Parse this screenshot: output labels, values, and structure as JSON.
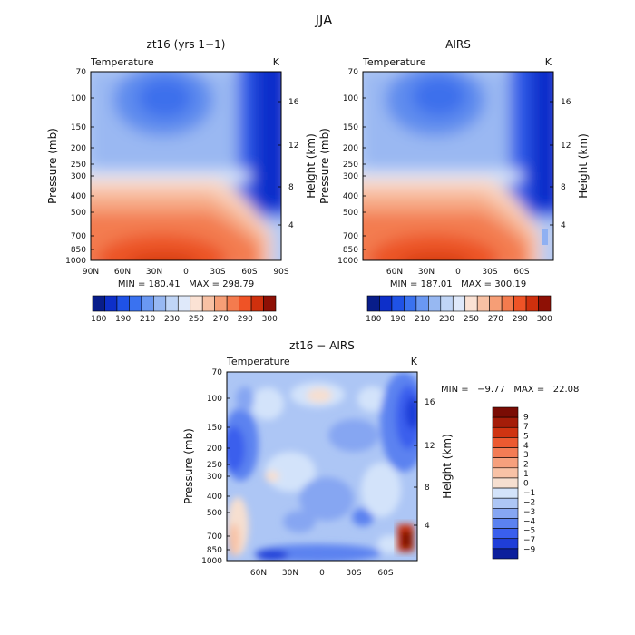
{
  "figure_title": "JJA",
  "chart_data": [
    {
      "type": "heatmap",
      "title": "zt16 (yrs 1−1)",
      "variable": "Temperature",
      "units": "K",
      "ylabel": "Pressure (mb)",
      "y2label": "Height (km)",
      "x_ticks": [
        "90N",
        "60N",
        "30N",
        "0",
        "30S",
        "60S",
        "90S"
      ],
      "y_ticks": [
        "70",
        "100",
        "150",
        "200",
        "250",
        "300",
        "400",
        "500",
        "700",
        "850",
        "1000"
      ],
      "y2_ticks": [
        "4",
        "8",
        "12",
        "16"
      ],
      "min": 180.41,
      "max": 298.79,
      "stats_text": "MIN = 180.41   MAX = 298.79",
      "levels": [
        170,
        180,
        190,
        200,
        210,
        220,
        230,
        240,
        250,
        260,
        270,
        280,
        290,
        300
      ],
      "colorbar_labels": [
        "180",
        "190",
        "210",
        "230",
        "250",
        "270",
        "290",
        "300"
      ]
    },
    {
      "type": "heatmap",
      "title": "AIRS",
      "variable": "Temperature",
      "units": "K",
      "ylabel": "Pressure (mb)",
      "y2label": "Height (km)",
      "x_ticks": [
        "60N",
        "30N",
        "0",
        "30S",
        "60S"
      ],
      "y_ticks": [
        "70",
        "100",
        "150",
        "200",
        "250",
        "300",
        "400",
        "500",
        "700",
        "850",
        "1000"
      ],
      "y2_ticks": [
        "4",
        "8",
        "12",
        "16"
      ],
      "min": 187.01,
      "max": 300.19,
      "stats_text": "MIN = 187.01   MAX = 300.19",
      "levels": [
        170,
        180,
        190,
        200,
        210,
        220,
        230,
        240,
        250,
        260,
        270,
        280,
        290,
        300
      ],
      "colorbar_labels": [
        "180",
        "190",
        "210",
        "230",
        "250",
        "270",
        "290",
        "300"
      ]
    },
    {
      "type": "heatmap",
      "title": "zt16 − AIRS",
      "variable": "Temperature",
      "units": "K",
      "ylabel": "Pressure (mb)",
      "y2label": "Height (km)",
      "x_ticks": [
        "60N",
        "30N",
        "0",
        "30S",
        "60S"
      ],
      "y_ticks": [
        "70",
        "100",
        "150",
        "200",
        "250",
        "300",
        "400",
        "500",
        "700",
        "850",
        "1000"
      ],
      "y2_ticks": [
        "4",
        "8",
        "12",
        "16"
      ],
      "min": -9.77,
      "max": 22.08,
      "stats_text": "MIN =   −9.77   MAX =   22.08",
      "levels": [
        -9,
        -7,
        -5,
        -4,
        -3,
        -2,
        -1,
        0,
        1,
        2,
        3,
        4,
        5,
        7,
        9
      ],
      "colorbar_labels": [
        "9",
        "7",
        "5",
        "4",
        "3",
        "2",
        "1",
        "0",
        "−1",
        "−2",
        "−3",
        "−4",
        "−5",
        "−7",
        "−9"
      ]
    }
  ],
  "colors": {
    "temp_scale": [
      "#081d8a",
      "#0d2fc9",
      "#1f52e6",
      "#3a72f0",
      "#6a98f2",
      "#97b8f2",
      "#c0d5f6",
      "#dfe9fa",
      "#fbe2d4",
      "#f8c1a4",
      "#f69e76",
      "#f47b4e",
      "#ef5326",
      "#cf300d",
      "#8e1005"
    ],
    "diff_scale": [
      "#0c1f9c",
      "#1f3ed8",
      "#3a5fed",
      "#5b82f0",
      "#86a6f2",
      "#adc6f5",
      "#d3e3fa",
      "#f6dfd0",
      "#f8c2a6",
      "#f6a07d",
      "#f37c55",
      "#ec5a31",
      "#cf3412",
      "#a51d09",
      "#7a0c04"
    ]
  }
}
